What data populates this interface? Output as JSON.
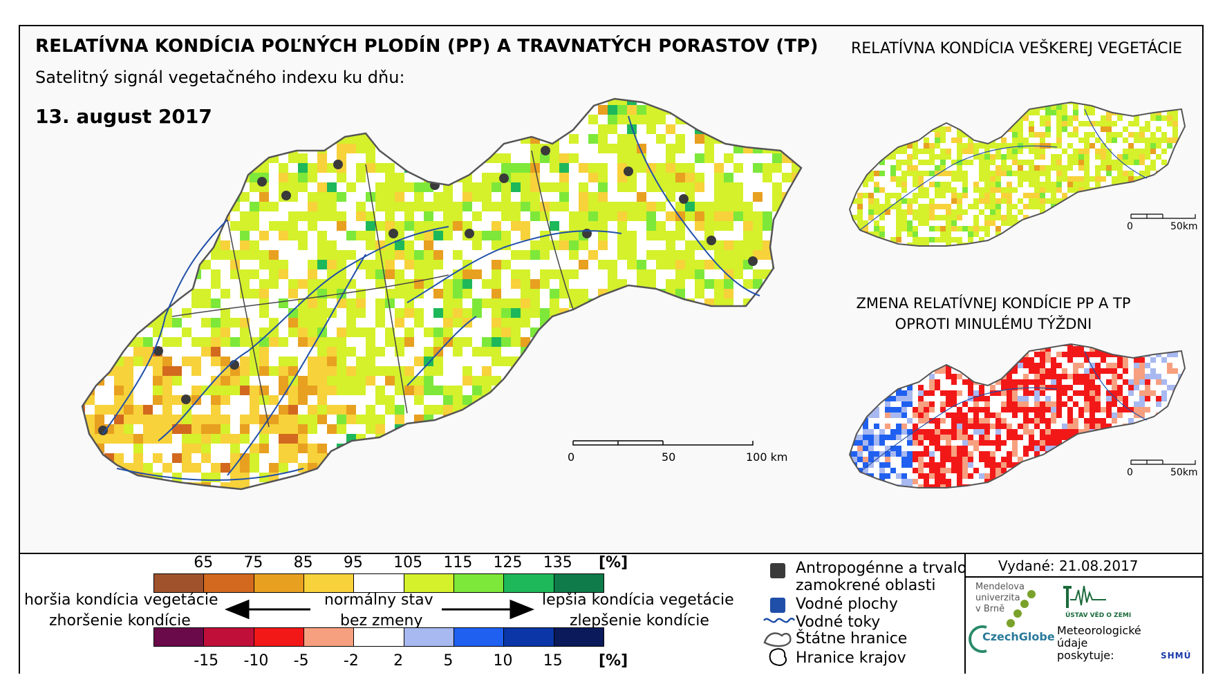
{
  "header": {
    "title": "RELATÍVNA KONDÍCIA POĽNÝCH PLODÍN (PP) A TRAVNATÝCH PORASTOV (TP)",
    "subtitle": "Satelitný signál vegetačného indexu ku dňu:",
    "date": "13. august 2017"
  },
  "inset_titles": {
    "all_vegetation": "RELATÍVNA KONDÍCIA VEŠKEREJ VEGETÁCIE",
    "change_line1": "ZMENA RELATÍVNEJ KONDÍCIE PP A TP",
    "change_line2": "OPROTI MINULÉMU TÝŽDNI"
  },
  "scale_main": {
    "t0": "0",
    "t50": "50",
    "t100": "100 km"
  },
  "scale_inset_1": {
    "t0": "0",
    "t50": "50km"
  },
  "scale_inset_2": {
    "t0": "0",
    "t50": "50km"
  },
  "legend": {
    "top_ticks": [
      "65",
      "75",
      "85",
      "95",
      "105",
      "115",
      "125",
      "135"
    ],
    "top_unit": "[%]",
    "top_colors": [
      "#a0522d",
      "#d2691e",
      "#e8a020",
      "#f7d23a",
      "#ffffff",
      "#d4f12b",
      "#7de83a",
      "#1eb85a",
      "#0f7a4a"
    ],
    "bottom_ticks": [
      "-15",
      "-10",
      "-5",
      "-2",
      "2",
      "5",
      "10",
      "15"
    ],
    "bottom_unit": "[%]",
    "bottom_colors": [
      "#6a0a4a",
      "#c0103a",
      "#f21818",
      "#f7a080",
      "#ffffff",
      "#a8b8f0",
      "#2060f0",
      "#0a36a8",
      "#0a1a5a"
    ],
    "worse_line1": "horšia kondícia vegetácie",
    "worse_line2": "zhoršenie kondície",
    "normal_line1": "normálny stav",
    "normal_line2": "bez zmeny",
    "better_line1": "lepšia kondícia vegetácie",
    "better_line2": "zlepšenie kondície"
  },
  "map_legend": {
    "anthropogenic_1": "Antropogénne a trvalo",
    "anthropogenic_2": "zamokrené oblasti",
    "water_areas": "Vodné plochy",
    "water_flows": "Vodné toky",
    "state_border": "Štátne hranice",
    "region_border": "Hranice krajov"
  },
  "issued": "Vydané: 21.08.2017",
  "logos": {
    "mendel_1": "Mendelova",
    "mendel_2": "univerzita",
    "mendel_3": "v Brně",
    "czechglobe": "CzechGlobe",
    "uvgz": "ÚSTAV VĚD O ZEMI",
    "meteo_1": "Meteorologické",
    "meteo_2": "údaje",
    "meteo_3": "poskytuje:",
    "shmu": "SHMÚ"
  },
  "colors": {
    "water": "#1f4fa8",
    "anthropogenic": "#3a3a3a"
  }
}
